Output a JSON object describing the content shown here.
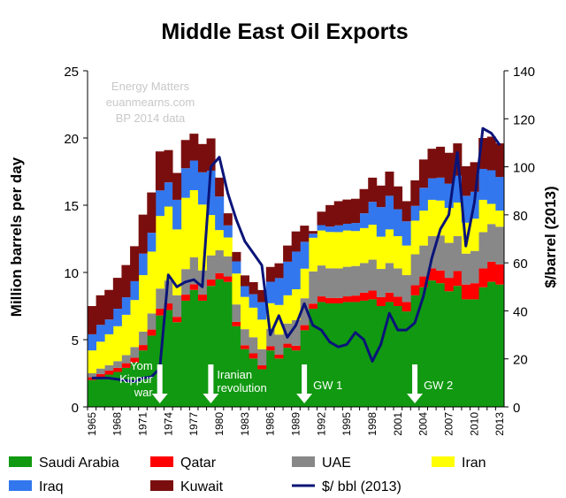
{
  "chart_data": {
    "type": "area",
    "title": "Middle East Oil Exports",
    "ylabel": "Million barrels per day",
    "y2label": "$/barrel (2013)",
    "ylim": [
      0,
      25
    ],
    "y2lim": [
      0,
      140
    ],
    "yticks": [
      0,
      5,
      10,
      15,
      20,
      25
    ],
    "y2ticks": [
      0,
      20,
      40,
      60,
      80,
      100,
      120,
      140
    ],
    "xtick_labels": [
      "1965",
      "1968",
      "1971",
      "1974",
      "1977",
      "1980",
      "1983",
      "1986",
      "1989",
      "1992",
      "1995",
      "1998",
      "2001",
      "2004",
      "2007",
      "2010",
      "2013"
    ],
    "watermark": [
      "Energy Matters",
      "euanmearns.com",
      "BP 2014  data"
    ],
    "annotations": [
      {
        "year": 1973,
        "lines": [
          "Yom",
          "Kippur",
          "war"
        ]
      },
      {
        "year": 1979,
        "lines": [
          "Iranian",
          "revolution"
        ]
      },
      {
        "year": 1990,
        "lines": [
          "GW 1"
        ]
      },
      {
        "year": 2003,
        "lines": [
          "GW 2"
        ]
      }
    ],
    "x": [
      1965,
      1966,
      1967,
      1968,
      1969,
      1970,
      1971,
      1972,
      1973,
      1974,
      1975,
      1976,
      1977,
      1978,
      1979,
      1980,
      1981,
      1982,
      1983,
      1984,
      1985,
      1986,
      1987,
      1988,
      1989,
      1990,
      1991,
      1992,
      1993,
      1994,
      1995,
      1996,
      1997,
      1998,
      1999,
      2000,
      2001,
      2002,
      2003,
      2004,
      2005,
      2006,
      2007,
      2008,
      2009,
      2010,
      2011,
      2012,
      2013
    ],
    "series": [
      {
        "name": "Saudi Arabia",
        "color": "#119911",
        "kind": "stack",
        "values": [
          2.0,
          2.2,
          2.4,
          2.6,
          2.9,
          3.3,
          4.2,
          5.3,
          6.8,
          7.2,
          6.3,
          7.9,
          8.7,
          7.9,
          9.0,
          9.5,
          9.3,
          6.0,
          4.3,
          3.6,
          2.8,
          4.2,
          3.6,
          4.4,
          4.2,
          5.7,
          7.3,
          7.8,
          7.7,
          7.7,
          7.8,
          7.8,
          7.9,
          8.0,
          7.5,
          7.8,
          7.5,
          7.1,
          8.3,
          8.9,
          9.4,
          9.2,
          8.6,
          9.0,
          8.0,
          8.0,
          8.9,
          9.3,
          9.1
        ]
      },
      {
        "name": "Qatar",
        "color": "#ff0000",
        "kind": "stack",
        "values": [
          0.2,
          0.25,
          0.3,
          0.3,
          0.35,
          0.35,
          0.4,
          0.45,
          0.5,
          0.5,
          0.4,
          0.45,
          0.42,
          0.45,
          0.47,
          0.45,
          0.4,
          0.32,
          0.28,
          0.38,
          0.29,
          0.31,
          0.28,
          0.3,
          0.35,
          0.38,
          0.38,
          0.42,
          0.41,
          0.4,
          0.42,
          0.48,
          0.6,
          0.65,
          0.66,
          0.7,
          0.7,
          0.7,
          0.75,
          0.8,
          0.9,
          0.95,
          1.0,
          1.1,
          1.1,
          1.2,
          1.4,
          1.5,
          1.5
        ]
      },
      {
        "name": "UAE",
        "color": "#888888",
        "kind": "stack",
        "values": [
          0.3,
          0.4,
          0.4,
          0.5,
          0.6,
          0.8,
          1.0,
          1.2,
          1.5,
          1.7,
          1.6,
          1.9,
          2.0,
          1.8,
          1.8,
          1.7,
          1.5,
          1.3,
          1.2,
          1.2,
          1.2,
          1.3,
          1.5,
          1.5,
          1.9,
          2.0,
          2.4,
          2.3,
          2.2,
          2.2,
          2.2,
          2.2,
          2.2,
          2.3,
          2.1,
          2.2,
          2.1,
          2.0,
          2.3,
          2.3,
          2.4,
          2.6,
          2.6,
          2.6,
          2.3,
          2.4,
          2.7,
          2.8,
          2.8
        ]
      },
      {
        "name": "Iran",
        "color": "#ffff00",
        "kind": "stack",
        "values": [
          1.7,
          2.0,
          2.3,
          2.6,
          3.0,
          3.5,
          4.2,
          4.6,
          5.4,
          5.5,
          4.9,
          5.3,
          5.0,
          4.9,
          3.0,
          1.5,
          1.4,
          2.3,
          2.4,
          2.2,
          2.2,
          1.9,
          2.2,
          2.1,
          2.3,
          2.2,
          2.5,
          2.6,
          2.7,
          2.7,
          2.7,
          2.6,
          2.6,
          2.6,
          2.4,
          2.5,
          2.4,
          2.2,
          2.5,
          2.6,
          2.7,
          2.6,
          2.6,
          2.5,
          2.3,
          2.4,
          2.4,
          1.5,
          1.2
        ]
      },
      {
        "name": "Iraq",
        "color": "#3377ee",
        "kind": "stack",
        "values": [
          1.2,
          1.25,
          1.1,
          1.3,
          1.3,
          1.4,
          1.6,
          1.4,
          1.9,
          1.8,
          2.2,
          2.2,
          2.2,
          2.4,
          3.3,
          2.5,
          0.9,
          0.9,
          0.8,
          1.0,
          1.3,
          1.6,
          2.0,
          2.5,
          2.8,
          2.0,
          0.3,
          0.4,
          0.4,
          0.5,
          0.5,
          0.6,
          1.1,
          1.7,
          2.2,
          2.5,
          2.0,
          1.8,
          1.1,
          1.7,
          1.6,
          1.7,
          1.8,
          2.0,
          2.0,
          2.0,
          2.3,
          2.5,
          2.5
        ]
      },
      {
        "name": "Kuwait",
        "color": "#7a0e0e",
        "kind": "stack",
        "values": [
          2.1,
          2.2,
          2.2,
          2.3,
          2.4,
          2.6,
          2.9,
          3.0,
          2.9,
          2.4,
          2.0,
          2.1,
          2.0,
          2.1,
          2.4,
          1.4,
          0.9,
          0.7,
          0.8,
          0.9,
          0.9,
          1.1,
          1.1,
          1.2,
          1.5,
          1.2,
          0.2,
          1.0,
          1.6,
          1.8,
          1.8,
          1.8,
          1.8,
          1.8,
          1.6,
          1.8,
          1.7,
          1.5,
          1.9,
          2.1,
          2.2,
          2.3,
          2.3,
          2.4,
          2.2,
          2.2,
          2.3,
          2.5,
          2.5
        ]
      },
      {
        "name": "$/ bbl (2013)",
        "color": "#0a1478",
        "kind": "line",
        "axis": "right",
        "values": [
          12,
          12,
          12,
          11.5,
          11,
          10.5,
          12,
          12.5,
          16,
          55,
          50,
          52,
          53,
          50,
          100,
          104,
          89,
          78,
          69,
          64,
          59,
          30,
          38,
          29,
          34,
          43,
          34,
          32,
          27,
          25,
          26,
          31,
          28,
          19,
          26,
          39,
          32,
          32,
          35,
          46,
          62,
          74,
          80,
          106,
          67,
          85,
          116,
          114,
          109
        ]
      }
    ]
  },
  "legend": {
    "row1": [
      "Saudi Arabia",
      "Qatar",
      "UAE",
      "Iran"
    ],
    "row2": [
      "Iraq",
      "Kuwait",
      "$/ bbl (2013)"
    ]
  }
}
